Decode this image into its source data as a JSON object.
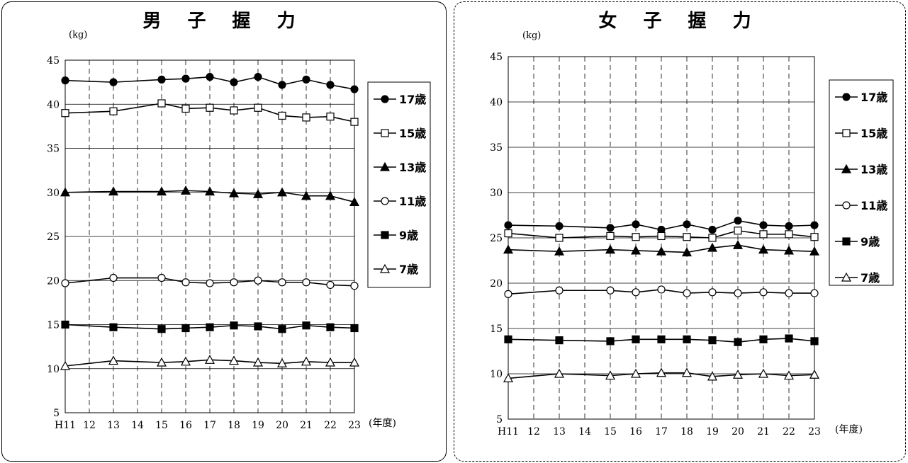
{
  "chart_data": [
    {
      "type": "line",
      "title": "男 子 握 力",
      "ylabel": "(kg)",
      "xlabel": "(年度)",
      "ylim": [
        5,
        45
      ],
      "yticks": [
        "5",
        "10",
        "15",
        "20",
        "25",
        "30",
        "35",
        "40",
        "45"
      ],
      "categories": [
        "H11",
        "12",
        "13",
        "14",
        "15",
        "16",
        "17",
        "18",
        "19",
        "20",
        "21",
        "22",
        "23"
      ],
      "legend_position": "right",
      "series": [
        {
          "name": "17歳",
          "marker": "filled-circle",
          "values": [
            42.7,
            null,
            42.5,
            null,
            42.8,
            42.9,
            43.1,
            42.5,
            43.1,
            42.2,
            42.8,
            42.2,
            41.7
          ]
        },
        {
          "name": "15歳",
          "marker": "open-square",
          "values": [
            39.0,
            null,
            39.2,
            null,
            40.1,
            39.5,
            39.6,
            39.3,
            39.6,
            38.7,
            38.5,
            38.6,
            38.0
          ]
        },
        {
          "name": "13歳",
          "marker": "filled-triangle",
          "values": [
            30.0,
            null,
            30.1,
            null,
            30.1,
            30.2,
            30.1,
            29.9,
            29.8,
            30.0,
            29.6,
            29.6,
            28.9
          ]
        },
        {
          "name": "11歳",
          "marker": "open-circle",
          "values": [
            19.7,
            null,
            20.3,
            null,
            20.3,
            19.8,
            19.7,
            19.8,
            20.0,
            19.8,
            19.8,
            19.5,
            19.4
          ]
        },
        {
          "name": "9歳",
          "marker": "filled-square",
          "values": [
            15.0,
            null,
            14.7,
            null,
            14.5,
            14.6,
            14.7,
            14.9,
            14.8,
            14.5,
            14.9,
            14.7,
            14.6
          ]
        },
        {
          "name": "7歳",
          "marker": "open-triangle",
          "values": [
            10.3,
            null,
            10.9,
            null,
            10.7,
            10.8,
            11.0,
            10.9,
            10.7,
            10.6,
            10.8,
            10.7,
            10.7
          ]
        }
      ]
    },
    {
      "type": "line",
      "title": "女 子 握 力",
      "ylabel": "(kg)",
      "xlabel": "(年度)",
      "ylim": [
        5,
        45
      ],
      "yticks": [
        "5",
        "10",
        "15",
        "20",
        "25",
        "30",
        "35",
        "40",
        "45"
      ],
      "categories": [
        "H11",
        "12",
        "13",
        "14",
        "15",
        "16",
        "17",
        "18",
        "19",
        "20",
        "21",
        "22",
        "23"
      ],
      "legend_position": "right",
      "series": [
        {
          "name": "17歳",
          "marker": "filled-circle",
          "values": [
            26.4,
            null,
            26.3,
            null,
            26.1,
            26.5,
            25.9,
            26.5,
            25.9,
            26.9,
            26.4,
            26.3,
            26.4
          ]
        },
        {
          "name": "15歳",
          "marker": "open-square",
          "values": [
            25.5,
            null,
            25.0,
            null,
            25.2,
            25.1,
            25.2,
            25.1,
            25.0,
            25.8,
            25.4,
            25.4,
            25.1
          ]
        },
        {
          "name": "13歳",
          "marker": "filled-triangle",
          "values": [
            23.7,
            null,
            23.5,
            null,
            23.7,
            23.6,
            23.5,
            23.4,
            23.9,
            24.2,
            23.7,
            23.6,
            23.5
          ]
        },
        {
          "name": "11歳",
          "marker": "open-circle",
          "values": [
            18.8,
            null,
            19.2,
            null,
            19.2,
            19.0,
            19.3,
            18.9,
            19.0,
            18.9,
            19.0,
            18.9,
            18.9
          ]
        },
        {
          "name": "9歳",
          "marker": "filled-square",
          "values": [
            13.8,
            null,
            13.7,
            null,
            13.6,
            13.8,
            13.8,
            13.8,
            13.7,
            13.5,
            13.8,
            13.9,
            13.6
          ]
        },
        {
          "name": "7歳",
          "marker": "open-triangle",
          "values": [
            9.5,
            null,
            10.0,
            null,
            9.8,
            10.0,
            10.1,
            10.1,
            9.7,
            9.9,
            10.0,
            9.8,
            9.9
          ]
        }
      ]
    }
  ]
}
